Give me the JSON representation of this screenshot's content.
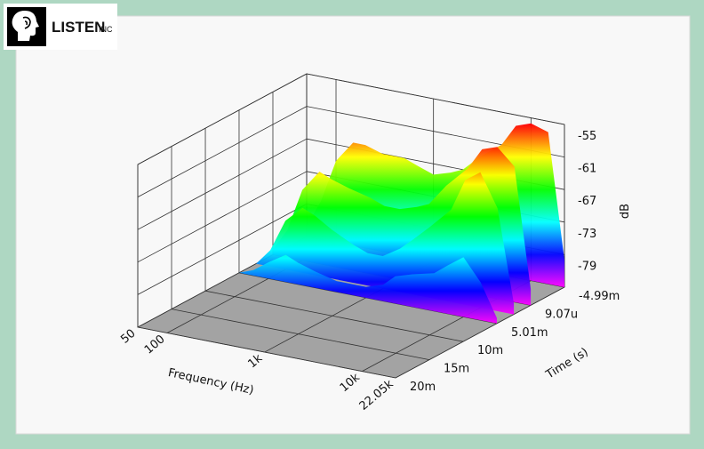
{
  "brand": {
    "name": "LISTEN",
    "suffix": "INC"
  },
  "chart_data": {
    "type": "waterfall",
    "xlabel": "Frequency (Hz)",
    "ylabel": "Time (s)",
    "zlabel": "dB",
    "xscale": "log",
    "x": [
      50,
      70,
      100,
      150,
      200,
      300,
      500,
      700,
      1000,
      1500,
      2000,
      3000,
      5000,
      7000,
      10000,
      15000,
      22050
    ],
    "xlim": [
      50,
      22050
    ],
    "xticks": [
      50,
      100,
      {
        "value": 1000,
        "label": "1k"
      },
      {
        "value": 10000,
        "label": "10k"
      },
      {
        "value": 22050,
        "label": "22.05k"
      }
    ],
    "tlim": [
      -0.00499,
      0.02
    ],
    "tticks": [
      {
        "value": -0.00499,
        "label": "-4.99m"
      },
      {
        "value": 9.07e-06,
        "label": "9.07u"
      },
      {
        "value": 0.00501,
        "label": "5.01m"
      },
      {
        "value": 0.01,
        "label": "10m"
      },
      {
        "value": 0.015,
        "label": "15m"
      },
      {
        "value": 0.02,
        "label": "20m"
      }
    ],
    "zlim": [
      -85,
      -55
    ],
    "zticks": [
      -55,
      -61,
      -67,
      -73,
      -79
    ],
    "floor_color": "#a3a3a3",
    "colormap": [
      "#ff00ff",
      "#0000ff",
      "#00ffff",
      "#00ff00",
      "#ffff00",
      "#ff0000"
    ],
    "series": [
      {
        "time": -0.00499,
        "values": [
          -83,
          -78,
          -70,
          -66,
          -66,
          -67,
          -67,
          -68,
          -69,
          -68,
          -67,
          -64,
          -61,
          -57,
          -56,
          -57,
          -80
        ]
      },
      {
        "time": 0,
        "values": [
          -84,
          -80,
          -72,
          -68,
          -69,
          -70,
          -71,
          -72,
          -72,
          -71,
          -70,
          -66,
          -62,
          -58,
          -57,
          -60,
          -82
        ]
      },
      {
        "time": 0.0025,
        "values": [
          -85,
          -82,
          -76,
          -73,
          -74,
          -76,
          -78,
          -79,
          -79,
          -77,
          -75,
          -72,
          -68,
          -62,
          -60,
          -66,
          -83
        ]
      },
      {
        "time": 0.005,
        "values": [
          -85,
          -84,
          -82,
          -80,
          -81,
          -82,
          -83,
          -83,
          -83,
          -82,
          -80,
          -79,
          -78,
          -76,
          -74,
          -78,
          -84
        ]
      }
    ]
  }
}
